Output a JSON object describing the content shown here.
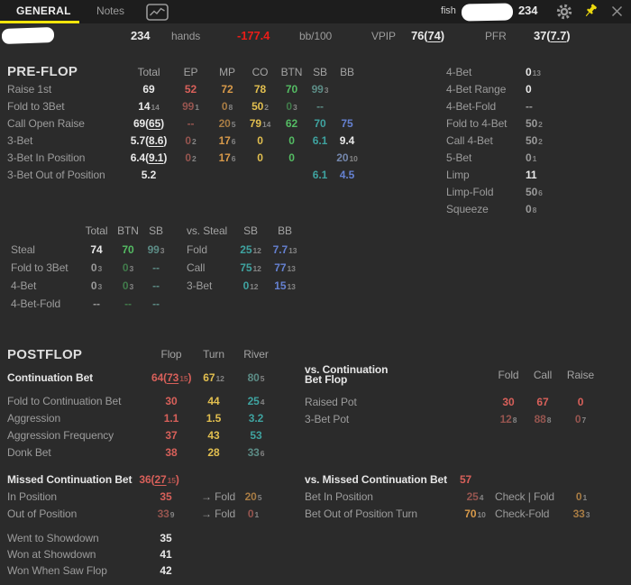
{
  "colors": {
    "red": "#d8605a",
    "redBright": "#ea1d18",
    "redDim": "#96554f",
    "org": "#d89a4a",
    "orgDim": "#a87c44",
    "gold": "#e2bf4f",
    "goldDim": "#b59c48",
    "grn": "#54bc63",
    "grnDim": "#417b4b",
    "teal": "#3fa3a0",
    "tealDim": "#5c8c86",
    "blue": "#6581d1",
    "blueDim": "#7487ad",
    "wht": "#e9e9e9",
    "gry": "#9a9a9a",
    "sub": "#858585",
    "label": "#9c9c9c",
    "yellow": "#f3e50b",
    "bgMain": "#2b2b2b",
    "bgTop": "#1d1d1d"
  },
  "topbar": {
    "tabs": [
      {
        "label": "GENERAL"
      },
      {
        "label": "Notes"
      }
    ],
    "fish_label": "fish",
    "count": "234"
  },
  "summary": {
    "hands_value": "234",
    "hands_label": "hands",
    "winrate": {
      "t": "-177.4",
      "c": "redBright"
    },
    "winrate_unit": "bb/100",
    "vpip_label": "VPIP",
    "vpip": {
      "t": "76",
      "p": "74",
      "c": "wht"
    },
    "pfr_label": "PFR",
    "pfr": {
      "t": "37",
      "p": "7.7",
      "c": "wht"
    }
  },
  "preflop": {
    "title": "PRE-FLOP",
    "columns": [
      "Total",
      "EP",
      "MP",
      "CO",
      "BTN",
      "SB",
      "BB"
    ],
    "rows": [
      {
        "label": "Raise 1st",
        "cells": [
          {
            "t": "69",
            "c": "wht"
          },
          {
            "t": "52",
            "c": "red"
          },
          {
            "t": "72",
            "c": "org"
          },
          {
            "t": "78",
            "c": "gold"
          },
          {
            "t": "70",
            "c": "grn"
          },
          {
            "t": "99",
            "s": "3",
            "c": "tealDim"
          },
          null
        ]
      },
      {
        "label": "Fold to 3Bet",
        "cells": [
          {
            "t": "14",
            "s": "14",
            "c": "wht"
          },
          {
            "t": "99",
            "s": "1",
            "c": "redDim"
          },
          {
            "t": "0",
            "s": "8",
            "c": "orgDim"
          },
          {
            "t": "50",
            "s": "2",
            "c": "gold"
          },
          {
            "t": "0",
            "s": "3",
            "c": "grnDim"
          },
          {
            "t": "--",
            "c": "tealDim"
          },
          null
        ]
      },
      {
        "label": "Call Open Raise",
        "cells": [
          {
            "t": "69",
            "p": "65",
            "c": "wht"
          },
          {
            "t": "--",
            "c": "redDim"
          },
          {
            "t": "20",
            "s": "5",
            "c": "orgDim"
          },
          {
            "t": "79",
            "s": "14",
            "c": "gold"
          },
          {
            "t": "62",
            "c": "grn"
          },
          {
            "t": "70",
            "c": "teal"
          },
          {
            "t": "75",
            "c": "blue"
          }
        ]
      },
      {
        "label": "3-Bet",
        "cells": [
          {
            "t": "5.7",
            "p": "8.6",
            "c": "wht"
          },
          {
            "t": "0",
            "s": "2",
            "c": "redDim"
          },
          {
            "t": "17",
            "s": "6",
            "c": "org"
          },
          {
            "t": "0",
            "c": "gold"
          },
          {
            "t": "0",
            "c": "grn"
          },
          {
            "t": "6.1",
            "c": "teal"
          },
          {
            "t": "9.4",
            "c": "wht"
          }
        ]
      },
      {
        "label": "3-Bet In Position",
        "cells": [
          {
            "t": "6.4",
            "p": "9.1",
            "c": "wht"
          },
          {
            "t": "0",
            "s": "2",
            "c": "redDim"
          },
          {
            "t": "17",
            "s": "6",
            "c": "org"
          },
          {
            "t": "0",
            "c": "gold"
          },
          {
            "t": "0",
            "c": "grn"
          },
          null,
          {
            "t": "20",
            "s": "10",
            "c": "blueDim"
          }
        ]
      },
      {
        "label": "3-Bet Out of Position",
        "cells": [
          {
            "t": "5.2",
            "c": "wht"
          },
          null,
          null,
          null,
          null,
          {
            "t": "6.1",
            "c": "teal"
          },
          {
            "t": "4.5",
            "c": "blue"
          }
        ]
      }
    ]
  },
  "fourbet_panel": {
    "rows": [
      {
        "label": "4-Bet",
        "value": {
          "t": "0",
          "s": "13",
          "c": "wht"
        }
      },
      {
        "label": "4-Bet Range",
        "value": {
          "t": "0",
          "c": "wht"
        }
      },
      {
        "label": "4-Bet-Fold",
        "value": {
          "t": "--",
          "c": "gry"
        }
      },
      {
        "label": "Fold to 4-Bet",
        "value": {
          "t": "50",
          "s": "2",
          "c": "gry"
        }
      },
      {
        "label": "Call 4-Bet",
        "value": {
          "t": "50",
          "s": "2",
          "c": "gry"
        }
      },
      {
        "label": "5-Bet",
        "value": {
          "t": "0",
          "s": "1",
          "c": "gry"
        }
      },
      {
        "label": "Limp",
        "value": {
          "t": "11",
          "c": "wht"
        }
      },
      {
        "label": "Limp-Fold",
        "value": {
          "t": "50",
          "s": "6",
          "c": "gry"
        }
      },
      {
        "label": "Squeeze",
        "value": {
          "t": "0",
          "s": "8",
          "c": "gry"
        }
      }
    ]
  },
  "steal": {
    "columns": [
      "Total",
      "BTN",
      "SB"
    ],
    "rows": [
      {
        "label": "Steal",
        "cells": [
          {
            "t": "74",
            "c": "wht"
          },
          {
            "t": "70",
            "c": "grn"
          },
          {
            "t": "99",
            "s": "3",
            "c": "tealDim"
          }
        ]
      },
      {
        "label": "Fold to 3Bet",
        "cells": [
          {
            "t": "0",
            "s": "3",
            "c": "gry"
          },
          {
            "t": "0",
            "s": "3",
            "c": "grnDim"
          },
          {
            "t": "--",
            "c": "tealDim"
          }
        ]
      },
      {
        "label": "4-Bet",
        "cells": [
          {
            "t": "0",
            "s": "3",
            "c": "gry"
          },
          {
            "t": "0",
            "s": "3",
            "c": "grnDim"
          },
          {
            "t": "--",
            "c": "tealDim"
          }
        ]
      },
      {
        "label": "4-Bet-Fold",
        "cells": [
          {
            "t": "--",
            "c": "gry"
          },
          {
            "t": "--",
            "c": "grnDim"
          },
          {
            "t": "--",
            "c": "tealDim"
          }
        ]
      }
    ]
  },
  "vs_steal": {
    "title": "vs. Steal",
    "columns": [
      "SB",
      "BB"
    ],
    "rows": [
      {
        "label": "Fold",
        "cells": [
          {
            "t": "25",
            "s": "12",
            "c": "teal"
          },
          {
            "t": "7.7",
            "s": "13",
            "c": "blue"
          }
        ]
      },
      {
        "label": "Call",
        "cells": [
          {
            "t": "75",
            "s": "12",
            "c": "teal"
          },
          {
            "t": "77",
            "s": "13",
            "c": "blue"
          }
        ]
      },
      {
        "label": "3-Bet",
        "cells": [
          {
            "t": "0",
            "s": "12",
            "c": "teal"
          },
          {
            "t": "15",
            "s": "13",
            "c": "blue"
          }
        ]
      }
    ]
  },
  "postflop": {
    "title": "POSTFLOP",
    "columns": [
      "Flop",
      "Turn",
      "River"
    ],
    "rows": [
      {
        "label": "Continuation Bet",
        "bold": true,
        "cells": [
          {
            "t": "64",
            "p": "73",
            "ps": "15",
            "c": "red"
          },
          {
            "t": "67",
            "s": "12",
            "c": "gold"
          },
          {
            "t": "80",
            "s": "5",
            "c": "tealDim"
          }
        ]
      },
      {
        "label": "Fold to Continuation Bet",
        "cells": [
          {
            "t": "30",
            "c": "red"
          },
          {
            "t": "44",
            "c": "gold"
          },
          {
            "t": "25",
            "s": "4",
            "c": "teal"
          }
        ]
      },
      {
        "label": "Aggression",
        "cells": [
          {
            "t": "1.1",
            "c": "red"
          },
          {
            "t": "1.5",
            "c": "gold"
          },
          {
            "t": "3.2",
            "c": "teal"
          }
        ]
      },
      {
        "label": "Aggression Frequency",
        "cells": [
          {
            "t": "37",
            "c": "red"
          },
          {
            "t": "43",
            "c": "gold"
          },
          {
            "t": "53",
            "c": "teal"
          }
        ]
      },
      {
        "label": "Donk Bet",
        "cells": [
          {
            "t": "38",
            "c": "red"
          },
          {
            "t": "28",
            "c": "gold"
          },
          {
            "t": "33",
            "s": "6",
            "c": "tealDim"
          }
        ]
      }
    ]
  },
  "vs_cbet": {
    "title_line1": "vs. Continuation",
    "title_line2": "Bet Flop",
    "columns": [
      "Fold",
      "Call",
      "Raise"
    ],
    "rows": [
      {
        "label": "Raised Pot",
        "cells": [
          {
            "t": "30",
            "c": "red"
          },
          {
            "t": "67",
            "c": "red"
          },
          {
            "t": "0",
            "c": "red"
          }
        ]
      },
      {
        "label": "3-Bet Pot",
        "cells": [
          {
            "t": "12",
            "s": "8",
            "c": "redDim"
          },
          {
            "t": "88",
            "s": "8",
            "c": "redDim"
          },
          {
            "t": "0",
            "s": "7",
            "c": "redDim"
          }
        ]
      }
    ]
  },
  "missed_cbet": {
    "title": "Missed Continuation Bet",
    "title_value": {
      "t": "36",
      "p": "27",
      "ps": "15",
      "c": "red"
    },
    "rows": [
      {
        "label": "In Position",
        "value": {
          "t": "35",
          "c": "red"
        },
        "action": "→ Fold",
        "value2": {
          "t": "20",
          "s": "5",
          "c": "orgDim"
        }
      },
      {
        "label": "Out of Position",
        "value": {
          "t": "33",
          "s": "9",
          "c": "redDim"
        },
        "action": "→ Fold",
        "value2": {
          "t": "0",
          "s": "1",
          "c": "redDim"
        }
      }
    ]
  },
  "vs_missed_cbet": {
    "title": "vs. Missed Continuation Bet",
    "title_value": {
      "t": "57",
      "c": "red"
    },
    "rows": [
      {
        "label": "Bet In Position",
        "value": {
          "t": "25",
          "s": "4",
          "c": "redDim"
        },
        "action": "Check | Fold",
        "value2": {
          "t": "0",
          "s": "1",
          "c": "orgDim"
        }
      },
      {
        "label": "Bet Out of Position Turn",
        "value": {
          "t": "70",
          "s": "10",
          "c": "org"
        },
        "action": "Check-Fold",
        "value2": {
          "t": "33",
          "s": "3",
          "c": "orgDim"
        }
      }
    ]
  },
  "showdown": {
    "rows": [
      {
        "label": "Went to Showdown",
        "value": {
          "t": "35",
          "c": "wht"
        }
      },
      {
        "label": "Won at Showdown",
        "value": {
          "t": "41",
          "c": "wht"
        }
      },
      {
        "label": "Won When Saw Flop",
        "value": {
          "t": "42",
          "c": "wht"
        }
      }
    ]
  }
}
